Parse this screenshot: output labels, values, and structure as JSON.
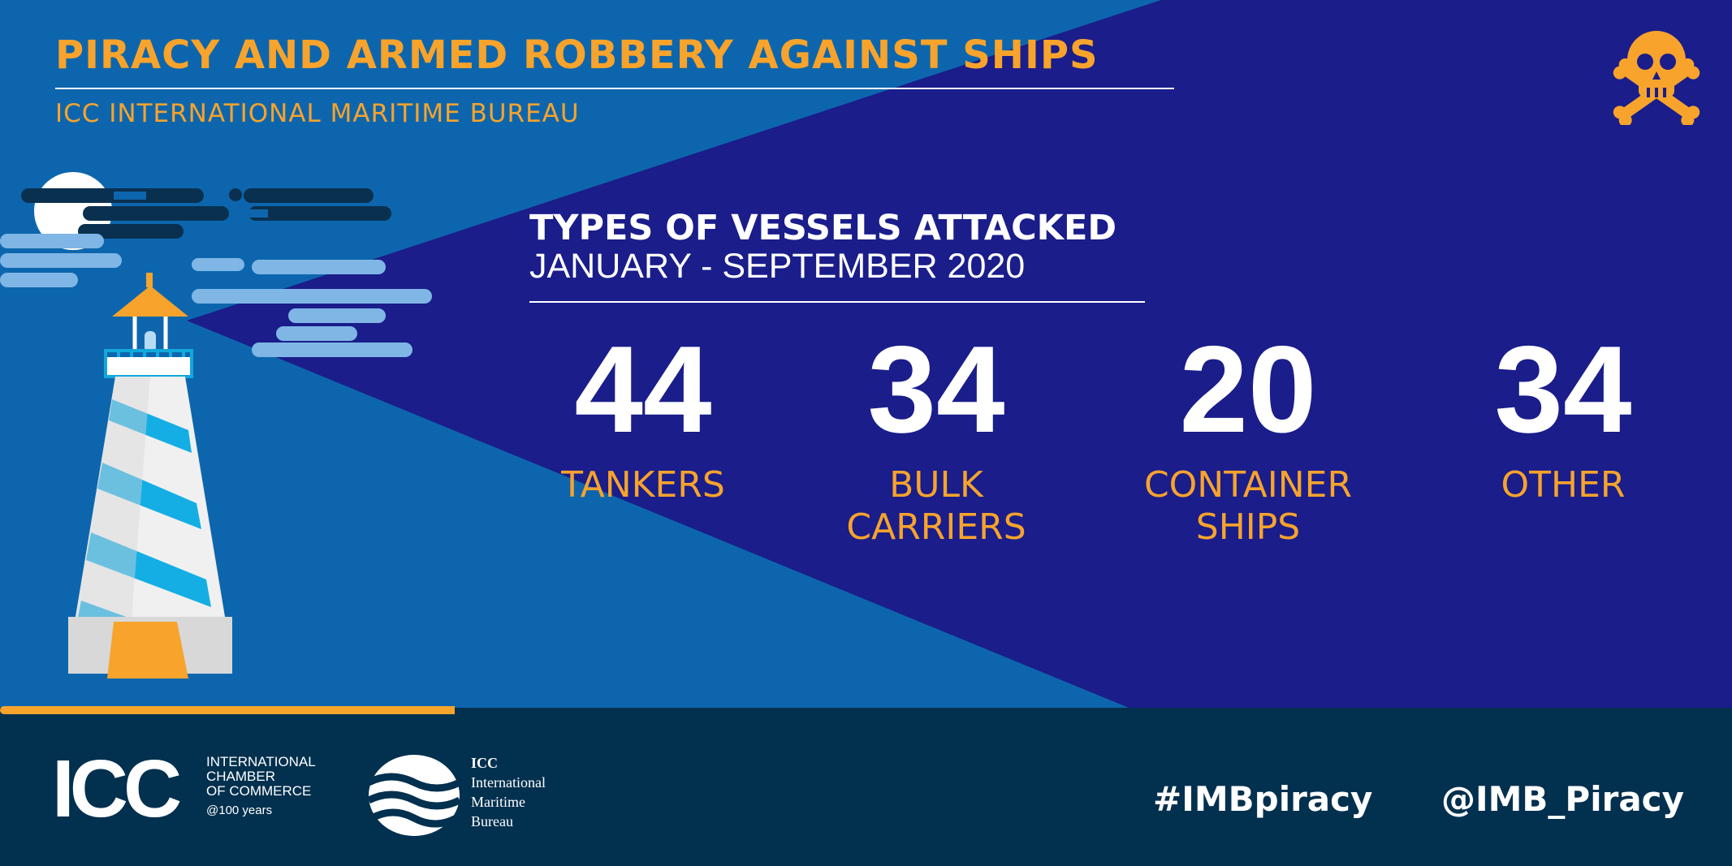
{
  "header": {
    "title": "PIRACY AND ARMED ROBBERY AGAINST SHIPS",
    "subtitle": "ICC INTERNATIONAL MARITIME BUREAU"
  },
  "section": {
    "title": "TYPES OF VESSELS ATTACKED",
    "period": "JANUARY - SEPTEMBER 2020"
  },
  "stats": [
    {
      "value": "44",
      "label_line1": "TANKERS",
      "label_line2": ""
    },
    {
      "value": "34",
      "label_line1": "BULK",
      "label_line2": "CARRIERS"
    },
    {
      "value": "20",
      "label_line1": "CONTAINER",
      "label_line2": "SHIPS"
    },
    {
      "value": "34",
      "label_line1": "OTHER",
      "label_line2": ""
    }
  ],
  "footer": {
    "icc_logo": {
      "word": "ICC",
      "line1": "INTERNATIONAL",
      "line2": "CHAMBER",
      "line3": "OF COMMERCE",
      "anniversary": "@100 years"
    },
    "imb_logo": {
      "line1": "ICC",
      "line2": "International",
      "line3": "Maritime",
      "line4": "Bureau"
    },
    "hashtag": "#IMBpiracy",
    "handle": "@IMB_Piracy"
  },
  "icons": {
    "top_right": "skull-crossbones-icon",
    "illustration": "lighthouse-icon"
  },
  "colors": {
    "background_dark": "#1a1d8a",
    "background_light": "#0d66ad",
    "footer": "#02304f",
    "accent": "#f7a32c",
    "text": "#ffffff"
  }
}
